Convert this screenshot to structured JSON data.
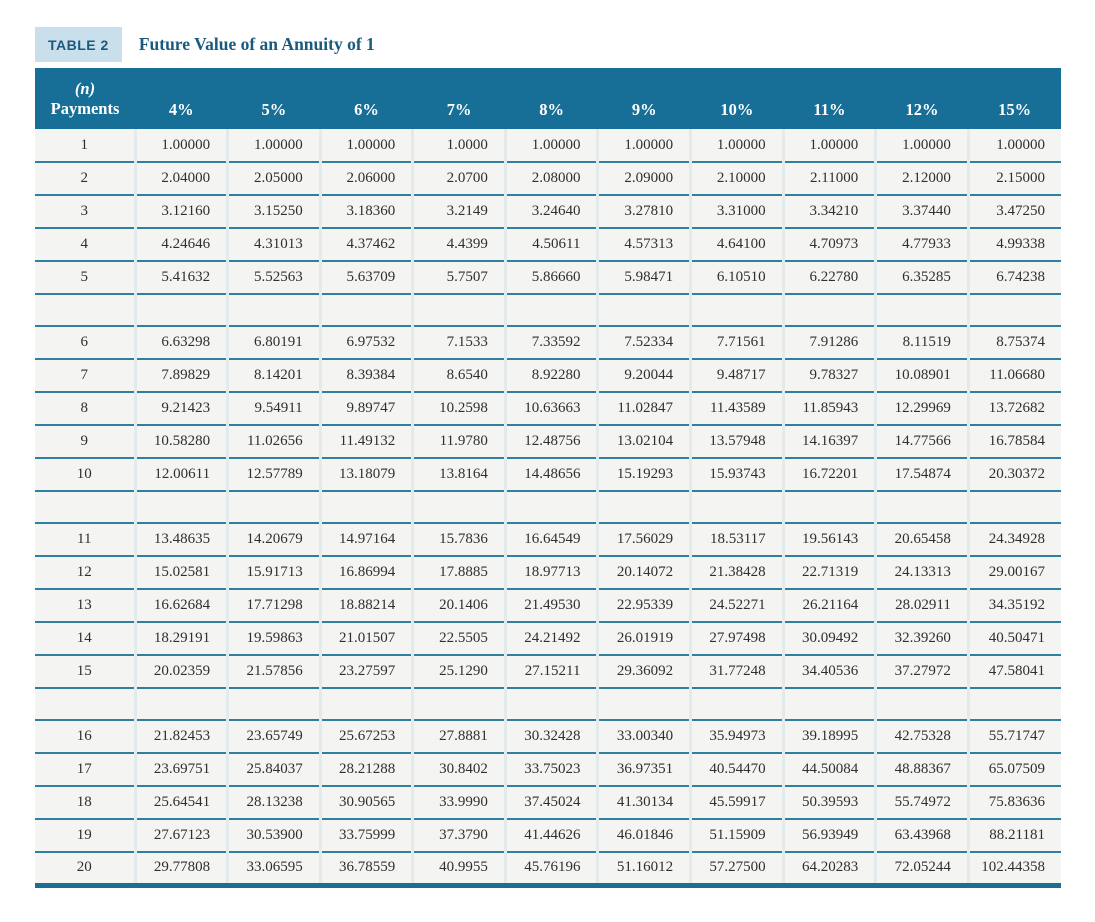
{
  "table": {
    "badge_label": "TABLE 2",
    "title": "Future Value of an Annuity of 1",
    "payments_header_line1": "(n)",
    "payments_header_line2": "Payments",
    "columns": [
      "4%",
      "5%",
      "6%",
      "7%",
      "8%",
      "9%",
      "10%",
      "11%",
      "12%",
      "15%"
    ],
    "groups": [
      {
        "rows": [
          {
            "n": "1",
            "values": [
              "1.00000",
              "1.00000",
              "1.00000",
              "1.0000",
              "1.00000",
              "1.00000",
              "1.00000",
              "1.00000",
              "1.00000",
              "1.00000"
            ]
          },
          {
            "n": "2",
            "values": [
              "2.04000",
              "2.05000",
              "2.06000",
              "2.0700",
              "2.08000",
              "2.09000",
              "2.10000",
              "2.11000",
              "2.12000",
              "2.15000"
            ]
          },
          {
            "n": "3",
            "values": [
              "3.12160",
              "3.15250",
              "3.18360",
              "3.2149",
              "3.24640",
              "3.27810",
              "3.31000",
              "3.34210",
              "3.37440",
              "3.47250"
            ]
          },
          {
            "n": "4",
            "values": [
              "4.24646",
              "4.31013",
              "4.37462",
              "4.4399",
              "4.50611",
              "4.57313",
              "4.64100",
              "4.70973",
              "4.77933",
              "4.99338"
            ]
          },
          {
            "n": "5",
            "values": [
              "5.41632",
              "5.52563",
              "5.63709",
              "5.7507",
              "5.86660",
              "5.98471",
              "6.10510",
              "6.22780",
              "6.35285",
              "6.74238"
            ]
          }
        ]
      },
      {
        "rows": [
          {
            "n": "6",
            "values": [
              "6.63298",
              "6.80191",
              "6.97532",
              "7.1533",
              "7.33592",
              "7.52334",
              "7.71561",
              "7.91286",
              "8.11519",
              "8.75374"
            ]
          },
          {
            "n": "7",
            "values": [
              "7.89829",
              "8.14201",
              "8.39384",
              "8.6540",
              "8.92280",
              "9.20044",
              "9.48717",
              "9.78327",
              "10.08901",
              "11.06680"
            ]
          },
          {
            "n": "8",
            "values": [
              "9.21423",
              "9.54911",
              "9.89747",
              "10.2598",
              "10.63663",
              "11.02847",
              "11.43589",
              "11.85943",
              "12.29969",
              "13.72682"
            ]
          },
          {
            "n": "9",
            "values": [
              "10.58280",
              "11.02656",
              "11.49132",
              "11.9780",
              "12.48756",
              "13.02104",
              "13.57948",
              "14.16397",
              "14.77566",
              "16.78584"
            ]
          },
          {
            "n": "10",
            "values": [
              "12.00611",
              "12.57789",
              "13.18079",
              "13.8164",
              "14.48656",
              "15.19293",
              "15.93743",
              "16.72201",
              "17.54874",
              "20.30372"
            ]
          }
        ]
      },
      {
        "rows": [
          {
            "n": "11",
            "values": [
              "13.48635",
              "14.20679",
              "14.97164",
              "15.7836",
              "16.64549",
              "17.56029",
              "18.53117",
              "19.56143",
              "20.65458",
              "24.34928"
            ]
          },
          {
            "n": "12",
            "values": [
              "15.02581",
              "15.91713",
              "16.86994",
              "17.8885",
              "18.97713",
              "20.14072",
              "21.38428",
              "22.71319",
              "24.13313",
              "29.00167"
            ]
          },
          {
            "n": "13",
            "values": [
              "16.62684",
              "17.71298",
              "18.88214",
              "20.1406",
              "21.49530",
              "22.95339",
              "24.52271",
              "26.21164",
              "28.02911",
              "34.35192"
            ]
          },
          {
            "n": "14",
            "values": [
              "18.29191",
              "19.59863",
              "21.01507",
              "22.5505",
              "24.21492",
              "26.01919",
              "27.97498",
              "30.09492",
              "32.39260",
              "40.50471"
            ]
          },
          {
            "n": "15",
            "values": [
              "20.02359",
              "21.57856",
              "23.27597",
              "25.1290",
              "27.15211",
              "29.36092",
              "31.77248",
              "34.40536",
              "37.27972",
              "47.58041"
            ]
          }
        ]
      },
      {
        "rows": [
          {
            "n": "16",
            "values": [
              "21.82453",
              "23.65749",
              "25.67253",
              "27.8881",
              "30.32428",
              "33.00340",
              "35.94973",
              "39.18995",
              "42.75328",
              "55.71747"
            ]
          },
          {
            "n": "17",
            "values": [
              "23.69751",
              "25.84037",
              "28.21288",
              "30.8402",
              "33.75023",
              "36.97351",
              "40.54470",
              "44.50084",
              "48.88367",
              "65.07509"
            ]
          },
          {
            "n": "18",
            "values": [
              "25.64541",
              "28.13238",
              "30.90565",
              "33.9990",
              "37.45024",
              "41.30134",
              "45.59917",
              "50.39593",
              "55.74972",
              "75.83636"
            ]
          },
          {
            "n": "19",
            "values": [
              "27.67123",
              "30.53900",
              "33.75999",
              "37.3790",
              "41.44626",
              "46.01846",
              "51.15909",
              "56.93949",
              "63.43968",
              "88.21181"
            ]
          },
          {
            "n": "20",
            "values": [
              "29.77808",
              "33.06595",
              "36.78559",
              "40.9955",
              "45.76196",
              "51.16012",
              "57.27500",
              "64.20283",
              "72.05244",
              "102.44358"
            ]
          }
        ]
      }
    ]
  },
  "colors": {
    "page-bg": "#ffffff",
    "badge-bg": "#c9dfec",
    "title-color": "#1a5a7e",
    "header-bg": "#176e96",
    "header-text": "#ffffff",
    "row-bg": "#f4f4f2",
    "line-teal": "#2f7fa2",
    "thick-teal": "#1e6e93",
    "divider-light": "#e4eaec",
    "text-color": "#2f2f2f"
  }
}
